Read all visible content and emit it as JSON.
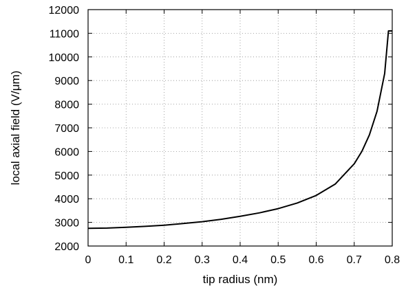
{
  "chart_data": {
    "type": "line",
    "title": "",
    "xlabel": "tip radius (nm)",
    "ylabel": "local axial field (V/μm)",
    "xlim": [
      0,
      0.8
    ],
    "ylim": [
      2000,
      12000
    ],
    "x_ticks": [
      "0",
      "0.1",
      "0.2",
      "0.3",
      "0.4",
      "0.5",
      "0.6",
      "0.7",
      "0.8"
    ],
    "y_ticks": [
      "2000",
      "3000",
      "4000",
      "5000",
      "6000",
      "7000",
      "8000",
      "9000",
      "10000",
      "11000",
      "12000"
    ],
    "grid": true,
    "legend": "none",
    "series": [
      {
        "x": [
          0,
          0.05,
          0.1,
          0.15,
          0.2,
          0.25,
          0.3,
          0.35,
          0.4,
          0.45,
          0.5,
          0.55,
          0.6,
          0.65,
          0.7,
          0.72,
          0.74,
          0.76,
          0.78,
          0.79,
          0.8
        ],
        "y": [
          2750,
          2760,
          2790,
          2830,
          2880,
          2950,
          3030,
          3130,
          3260,
          3400,
          3580,
          3820,
          4140,
          4620,
          5480,
          6000,
          6700,
          7700,
          9300,
          11100,
          11100
        ]
      }
    ]
  }
}
